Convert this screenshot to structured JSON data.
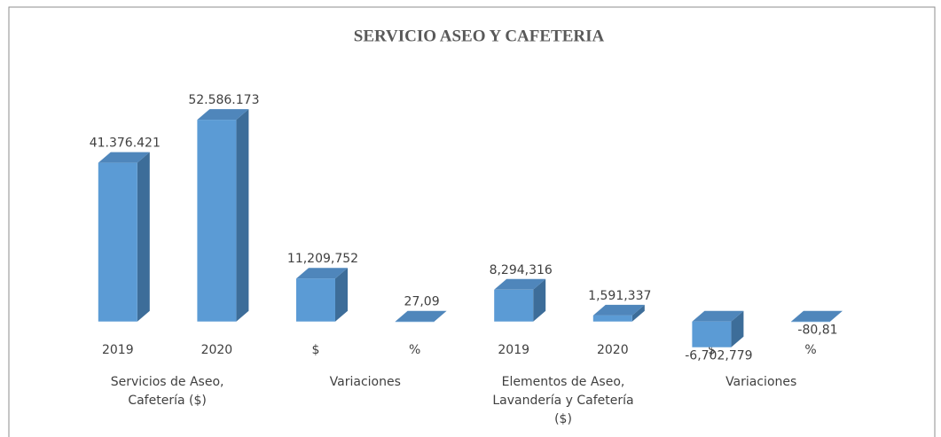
{
  "chart_data": {
    "type": "bar3d",
    "title": "SERVICIO ASEO Y CAFETERIA",
    "categories": [
      "2019",
      "2020",
      "$",
      "%",
      "2019",
      "2020",
      "$",
      "%"
    ],
    "values": [
      41376421,
      52586173,
      11209752,
      27.09,
      8294316,
      1591337,
      -6702779,
      -80.81
    ],
    "value_labels": [
      "41.376.421",
      "52.586.173",
      "11,209,752",
      "27,09",
      "8,294,316",
      "1,591,337",
      "-6,702,779",
      "-80,81"
    ],
    "group_labels": [
      "Servicios de Aseo, Cafetería ($)",
      "Variaciones",
      "Elementos de Aseo, Lavandería y Cafetería ($)",
      "Variaciones"
    ],
    "color": "#5b9bd5",
    "ylim": [
      -10000000,
      60000000
    ]
  }
}
